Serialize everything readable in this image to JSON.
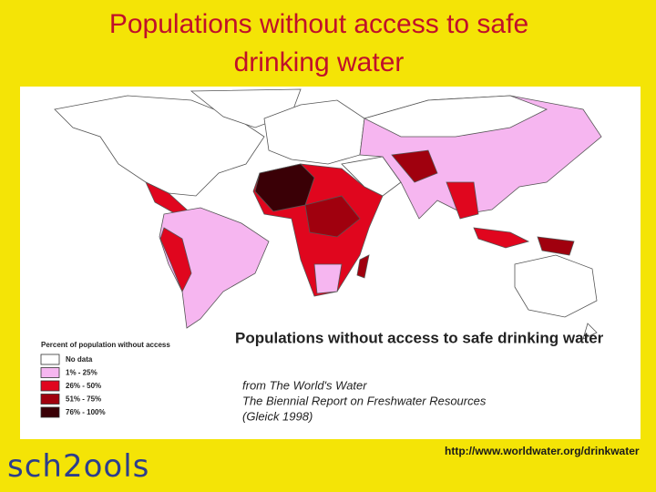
{
  "header": {
    "title_lines": [
      "Populations without access to safe",
      "drinking water"
    ]
  },
  "map": {
    "title": "Populations without access to safe drinking water",
    "legend": {
      "title": "Percent of population without access",
      "items": [
        {
          "label": "No data",
          "color": "#ffffff"
        },
        {
          "label": "1% - 25%",
          "color": "#f6b6f0"
        },
        {
          "label": "26% - 50%",
          "color": "#e0061e"
        },
        {
          "label": "51% - 75%",
          "color": "#a0000e"
        },
        {
          "label": "76% - 100%",
          "color": "#3a0006"
        }
      ]
    },
    "source_lines": [
      "from The World's Water",
      "The Biennial Report on Freshwater Resources",
      "(Gleick 1998)"
    ]
  },
  "footer": {
    "url": "http://www.worldwater.org/drinkwater",
    "logo": "sch2ools"
  }
}
